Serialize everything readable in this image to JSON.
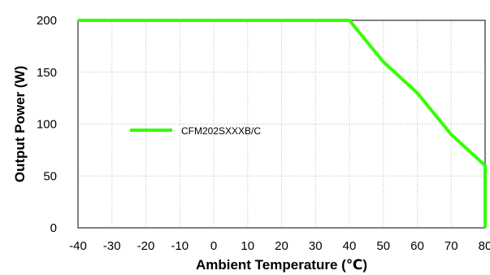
{
  "chart_data": {
    "type": "line",
    "title": "",
    "xlabel": "Ambient Temperature (℃)",
    "ylabel": "Output Power (W)",
    "xlim": [
      -40,
      80
    ],
    "ylim": [
      0,
      200
    ],
    "x_ticks": [
      -40,
      -30,
      -20,
      -10,
      0,
      10,
      20,
      30,
      40,
      50,
      60,
      70,
      80
    ],
    "y_ticks": [
      0,
      50,
      100,
      150,
      200
    ],
    "grid": true,
    "legend_position": "center-left",
    "series": [
      {
        "name": "CFM202SXXXB/C",
        "color": "#33ff00",
        "x": [
          -40,
          40,
          50,
          60,
          70,
          80,
          80
        ],
        "y": [
          200,
          200,
          160,
          130,
          90,
          60,
          0
        ]
      }
    ]
  }
}
